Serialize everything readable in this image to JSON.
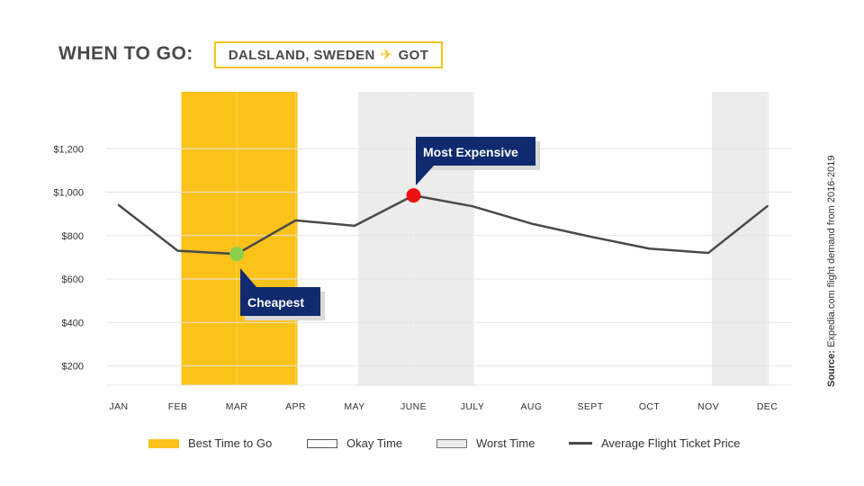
{
  "header": {
    "title": "WHEN TO GO:",
    "location": "DALSLAND, SWEDEN",
    "plane_icon": "airplane-icon",
    "airport": "GOT"
  },
  "chart_data": {
    "type": "line",
    "title": "WHEN TO GO: DALSLAND, SWEDEN GOT",
    "categories": [
      "JAN",
      "FEB",
      "MAR",
      "APR",
      "MAY",
      "JUNE",
      "JULY",
      "AUG",
      "SEPT",
      "OCT",
      "NOV",
      "DEC"
    ],
    "series": [
      {
        "name": "Average Flight Ticket Price",
        "values": [
          940,
          730,
          715,
          870,
          845,
          985,
          935,
          855,
          795,
          740,
          720,
          935
        ]
      }
    ],
    "y_ticks": [
      200,
      400,
      600,
      800,
      1000,
      1200
    ],
    "y_tick_labels": [
      "$200",
      "$400",
      "$600",
      "$800",
      "$1,000",
      "$1,200"
    ],
    "ylim": [
      100,
      1350
    ],
    "bands": [
      {
        "type": "best",
        "from": "FEB",
        "to": "APR"
      },
      {
        "type": "worst",
        "from": "MAY",
        "to": "JULY"
      },
      {
        "type": "worst",
        "from": "NOV",
        "to": "DEC"
      }
    ],
    "annotations": [
      {
        "label": "Cheapest",
        "month": "MAR",
        "value": 715
      },
      {
        "label": "Most Expensive",
        "month": "JUNE",
        "value": 985
      }
    ],
    "legend": [
      "Best Time to Go",
      "Okay Time",
      "Worst Time",
      "Average Flight Ticket Price"
    ],
    "source_label": "Source:",
    "source_text": "Expedia.com flight demand from 2016-2019",
    "colors": {
      "best": "#fbc21a",
      "worst": "#ececec",
      "line": "#4a4a4a",
      "cheapest_marker": "#8ccf4d",
      "expensive_marker": "#ee1111",
      "callout_bg": "#0f2a6e",
      "callout_shadow": "#d9d9d9"
    }
  }
}
